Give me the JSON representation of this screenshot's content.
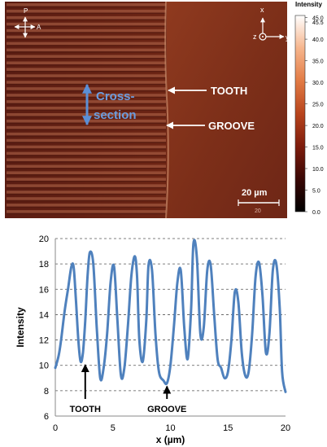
{
  "micrograph": {
    "orient_left": {
      "up": "P",
      "right": "A"
    },
    "orient_right": {
      "up": "x",
      "left": "z",
      "right": "y"
    },
    "cross_section": [
      "Cross-",
      "section"
    ],
    "annotations": [
      "TOOTH",
      "GROOVE"
    ],
    "scalebar": {
      "label": "20 µm",
      "sublabel": "20"
    }
  },
  "colorbar": {
    "title": "Intensity",
    "ticks": [
      "45.5",
      "45.0",
      "40.0",
      "35.0",
      "30.0",
      "25.0",
      "20.0",
      "15.0",
      "10.0",
      "5.0",
      "0.0"
    ],
    "tick_values": [
      45.5,
      45.0,
      40.0,
      35.0,
      30.0,
      25.0,
      20.0,
      15.0,
      10.0,
      5.0,
      0.0
    ],
    "min": 0,
    "max": 45.5,
    "colors": [
      "#000000",
      "#3a0705",
      "#7e1c0c",
      "#b8441c",
      "#e27b44",
      "#f6b58c",
      "#ffffff"
    ]
  },
  "chart_data": {
    "type": "line",
    "title": "",
    "xlabel": "x (µm)",
    "ylabel": "Intensity",
    "xlim": [
      0,
      20
    ],
    "ylim": [
      6,
      20
    ],
    "xticks": [
      0,
      5,
      10,
      15,
      20
    ],
    "yticks": [
      6,
      8,
      10,
      12,
      14,
      16,
      18,
      20
    ],
    "grid": "horizontal dashed",
    "series": [
      {
        "color": "#4f81bd",
        "x": [
          0,
          0.3,
          0.5,
          0.8,
          1.1,
          1.4,
          1.6,
          1.8,
          2.0,
          2.2,
          2.4,
          2.6,
          2.8,
          3.0,
          3.3,
          3.6,
          3.9,
          4.2,
          4.5,
          4.8,
          5.1,
          5.4,
          5.7,
          6.0,
          6.3,
          6.6,
          6.9,
          7.1,
          7.3,
          7.6,
          7.9,
          8.1,
          8.4,
          8.7,
          9.0,
          9.4,
          9.7,
          10.0,
          10.3,
          10.6,
          10.9,
          11.2,
          11.5,
          11.8,
          12.0,
          12.3,
          12.6,
          12.9,
          13.2,
          13.5,
          13.8,
          14.1,
          14.4,
          14.7,
          15.0,
          15.3,
          15.6,
          15.9,
          16.2,
          16.5,
          16.8,
          17.1,
          17.4,
          17.7,
          18.0,
          18.3,
          18.6,
          18.9,
          19.2,
          19.5,
          19.7,
          20.0
        ],
        "values": [
          9.8,
          10.8,
          12.0,
          14.2,
          16.0,
          17.8,
          17.7,
          15.0,
          12.0,
          10.3,
          11.0,
          13.5,
          17.0,
          18.9,
          18.0,
          13.0,
          9.0,
          9.8,
          12.5,
          16.5,
          17.8,
          13.5,
          9.2,
          9.8,
          13.0,
          17.0,
          18.6,
          17.0,
          12.0,
          10.3,
          13.5,
          17.9,
          17.5,
          12.5,
          9.5,
          8.8,
          8.6,
          10.0,
          13.0,
          16.5,
          17.5,
          13.0,
          10.5,
          14.5,
          19.6,
          18.5,
          12.5,
          13.0,
          17.5,
          17.9,
          14.0,
          10.5,
          9.8,
          9.0,
          9.5,
          12.0,
          15.8,
          15.0,
          11.0,
          9.2,
          9.5,
          12.5,
          17.0,
          18.1,
          15.5,
          11.0,
          12.5,
          17.5,
          18.0,
          14.5,
          9.5,
          7.9
        ]
      }
    ],
    "annotations": [
      {
        "text": "TOOTH",
        "x": 2.6,
        "y": 10.3
      },
      {
        "text": "GROOVE",
        "x": 9.7,
        "y": 8.6
      }
    ]
  }
}
